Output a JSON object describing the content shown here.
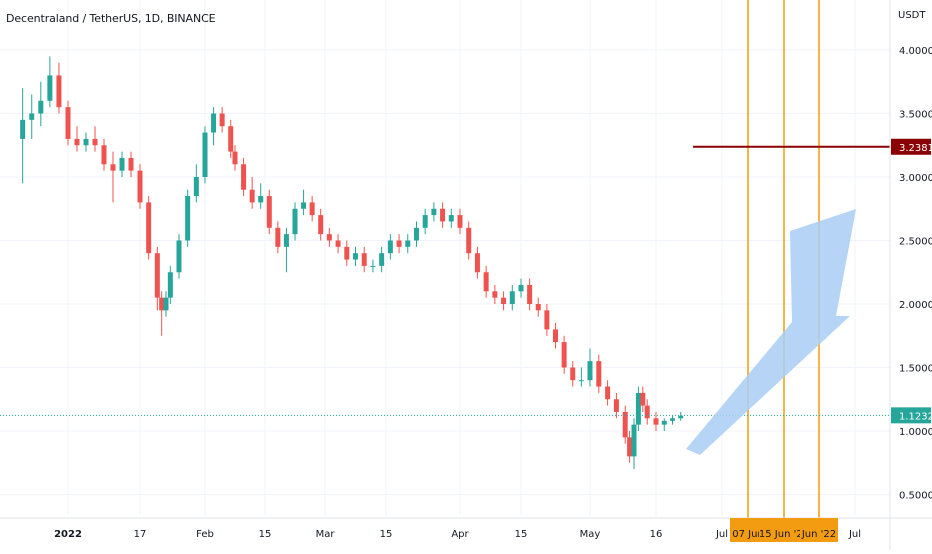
{
  "header": {
    "title": "Decentraland / TetherUS, 1D, BINANCE",
    "unit": "USDT"
  },
  "y_axis": {
    "ticks": [
      "4.0000",
      "3.5000",
      "3.0000",
      "2.5000",
      "2.0000",
      "1.5000",
      "1.0000",
      "0.5000"
    ]
  },
  "x_axis": {
    "labels": [
      "2022",
      "17",
      "Feb",
      "15",
      "Mar",
      "15",
      "Apr",
      "15",
      "May",
      "16",
      "Jul",
      "Jul"
    ]
  },
  "price_labels": {
    "resistance": "3.2381",
    "last": "1.1232"
  },
  "vertical_markers": [
    "07 Jun",
    "15 Jun '22",
    "Jun '22"
  ],
  "colors": {
    "up": "#26a69a",
    "down": "#ef5350",
    "resistance": "#8b0000",
    "vline": "#f39c12",
    "arrow": "#a9cef5",
    "last_line": "#26a69a"
  },
  "chart_data": {
    "type": "candlestick",
    "title": "Decentraland / TetherUS, 1D, BINANCE",
    "ylabel": "USDT",
    "ylim": [
      0.25,
      4.2
    ],
    "dates": [
      "2021-12-22",
      "2021-12-24",
      "2021-12-26",
      "2021-12-28",
      "2021-12-30",
      "2022-01-01",
      "2022-01-03",
      "2022-01-05",
      "2022-01-07",
      "2022-01-09",
      "2022-01-11",
      "2022-01-13",
      "2022-01-15",
      "2022-01-17",
      "2022-01-19",
      "2022-01-21",
      "2022-01-22",
      "2022-01-23",
      "2022-01-24",
      "2022-01-26",
      "2022-01-28",
      "2022-01-30",
      "2022-02-01",
      "2022-02-03",
      "2022-02-05",
      "2022-02-07",
      "2022-02-08",
      "2022-02-10",
      "2022-02-12",
      "2022-02-14",
      "2022-02-16",
      "2022-02-18",
      "2022-02-20",
      "2022-02-22",
      "2022-02-24",
      "2022-02-26",
      "2022-02-28",
      "2022-03-02",
      "2022-03-04",
      "2022-03-06",
      "2022-03-08",
      "2022-03-10",
      "2022-03-12",
      "2022-03-14",
      "2022-03-16",
      "2022-03-18",
      "2022-03-20",
      "2022-03-22",
      "2022-03-24",
      "2022-03-26",
      "2022-03-28",
      "2022-03-30",
      "2022-04-01",
      "2022-04-03",
      "2022-04-05",
      "2022-04-07",
      "2022-04-09",
      "2022-04-11",
      "2022-04-13",
      "2022-04-15",
      "2022-04-17",
      "2022-04-19",
      "2022-04-21",
      "2022-04-23",
      "2022-04-25",
      "2022-04-27",
      "2022-04-29",
      "2022-05-01",
      "2022-05-03",
      "2022-05-05",
      "2022-05-07",
      "2022-05-09",
      "2022-05-10",
      "2022-05-11",
      "2022-05-12",
      "2022-05-13",
      "2022-05-14",
      "2022-05-16",
      "2022-05-18",
      "2022-05-20",
      "2022-05-22"
    ],
    "open": [
      3.3,
      3.45,
      3.5,
      3.6,
      3.8,
      3.55,
      3.3,
      3.25,
      3.3,
      3.25,
      3.1,
      3.05,
      3.15,
      3.05,
      2.8,
      2.4,
      2.05,
      1.95,
      2.05,
      2.25,
      2.5,
      2.85,
      3.0,
      3.35,
      3.5,
      3.4,
      3.2,
      3.1,
      2.9,
      2.8,
      2.85,
      2.6,
      2.45,
      2.55,
      2.75,
      2.8,
      2.7,
      2.55,
      2.5,
      2.45,
      2.35,
      2.4,
      2.3,
      2.3,
      2.4,
      2.5,
      2.45,
      2.5,
      2.6,
      2.7,
      2.75,
      2.65,
      2.7,
      2.6,
      2.4,
      2.25,
      2.1,
      2.05,
      2.0,
      2.1,
      2.15,
      2.0,
      1.95,
      1.8,
      1.7,
      1.5,
      1.4,
      1.4,
      1.55,
      1.35,
      1.25,
      1.15,
      0.95,
      0.8,
      1.05,
      1.3,
      1.2,
      1.1,
      1.05,
      1.08,
      1.1
    ],
    "high": [
      3.7,
      3.65,
      3.75,
      3.95,
      3.9,
      3.6,
      3.4,
      3.35,
      3.4,
      3.3,
      3.2,
      3.2,
      3.2,
      3.1,
      2.85,
      2.45,
      2.1,
      2.1,
      2.3,
      2.55,
      2.9,
      3.1,
      3.4,
      3.55,
      3.55,
      3.45,
      3.25,
      3.15,
      3.0,
      2.95,
      2.9,
      2.65,
      2.6,
      2.8,
      2.9,
      2.85,
      2.75,
      2.6,
      2.55,
      2.5,
      2.45,
      2.45,
      2.35,
      2.45,
      2.55,
      2.55,
      2.55,
      2.65,
      2.75,
      2.8,
      2.8,
      2.75,
      2.75,
      2.65,
      2.45,
      2.3,
      2.15,
      2.1,
      2.15,
      2.2,
      2.2,
      2.05,
      2.0,
      1.85,
      1.75,
      1.55,
      1.5,
      1.65,
      1.6,
      1.4,
      1.3,
      1.2,
      1.0,
      1.1,
      1.35,
      1.35,
      1.25,
      1.15,
      1.1,
      1.12,
      1.15
    ],
    "low": [
      2.95,
      3.3,
      3.4,
      3.55,
      3.5,
      3.25,
      3.2,
      3.2,
      3.2,
      3.05,
      2.8,
      3.0,
      3.0,
      2.75,
      2.35,
      1.95,
      1.75,
      1.9,
      2.0,
      2.2,
      2.45,
      2.8,
      2.95,
      3.25,
      3.35,
      3.15,
      3.05,
      2.85,
      2.75,
      2.75,
      2.55,
      2.4,
      2.25,
      2.5,
      2.7,
      2.65,
      2.5,
      2.45,
      2.4,
      2.3,
      2.3,
      2.25,
      2.25,
      2.25,
      2.35,
      2.4,
      2.4,
      2.45,
      2.55,
      2.65,
      2.6,
      2.6,
      2.55,
      2.35,
      2.2,
      2.05,
      2.0,
      1.95,
      1.95,
      2.05,
      1.95,
      1.9,
      1.75,
      1.65,
      1.45,
      1.35,
      1.35,
      1.35,
      1.3,
      1.2,
      1.1,
      0.9,
      0.75,
      0.7,
      1.0,
      1.15,
      1.05,
      1.0,
      1.0,
      1.05,
      1.08
    ],
    "close": [
      3.45,
      3.5,
      3.6,
      3.8,
      3.55,
      3.3,
      3.25,
      3.3,
      3.25,
      3.1,
      3.05,
      3.15,
      3.05,
      2.8,
      2.4,
      2.05,
      1.95,
      2.05,
      2.25,
      2.5,
      2.85,
      3.0,
      3.35,
      3.5,
      3.4,
      3.2,
      3.1,
      2.9,
      2.8,
      2.85,
      2.6,
      2.45,
      2.55,
      2.75,
      2.8,
      2.7,
      2.55,
      2.5,
      2.45,
      2.35,
      2.4,
      2.3,
      2.3,
      2.4,
      2.5,
      2.45,
      2.5,
      2.6,
      2.7,
      2.75,
      2.65,
      2.7,
      2.6,
      2.4,
      2.25,
      2.1,
      2.05,
      2.0,
      2.1,
      2.15,
      2.0,
      1.95,
      1.8,
      1.7,
      1.5,
      1.4,
      1.4,
      1.55,
      1.35,
      1.25,
      1.15,
      0.95,
      0.8,
      1.05,
      1.3,
      1.2,
      1.1,
      1.05,
      1.08,
      1.1,
      1.12
    ],
    "resistance": 3.2381,
    "last_price": 1.1232,
    "markers": [
      "2022-06-07",
      "2022-06-15",
      "2022-06-22"
    ],
    "grid": true
  }
}
